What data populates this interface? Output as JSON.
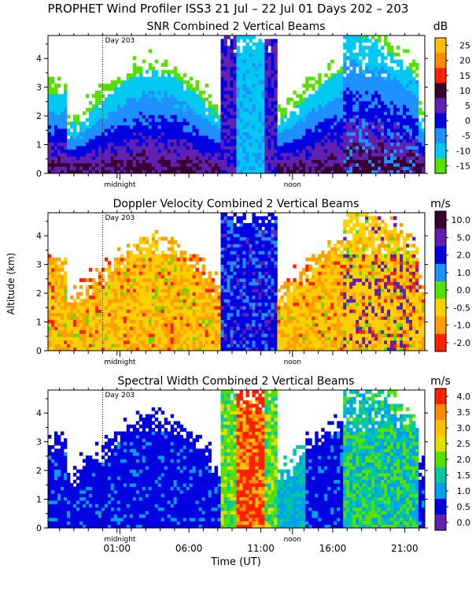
{
  "header": {
    "title": "PROPHET Wind Profiler ISS3  21 Jul – 22 Jul 01 Days 202 – 203"
  },
  "axes": {
    "xlabel": "Time (UT)",
    "ylabel": "Altitude (km)",
    "xticks": [
      "01:00",
      "06:00",
      "11:00",
      "16:00",
      "21:00"
    ],
    "xtick_hours": [
      1,
      6,
      11,
      16,
      21
    ],
    "yticks": [
      "0",
      "1",
      "2",
      "3",
      "4"
    ],
    "ylim": [
      0,
      4.8
    ],
    "xlim_hours": [
      -3.8,
      22.4
    ],
    "day_marker": {
      "label": "Day 203",
      "hour": 0
    },
    "midnight_label": "midnight",
    "noon_label": "noon"
  },
  "colors": {
    "background": "#ffffff",
    "scale": [
      "#55e000",
      "#00c8f0",
      "#1e90ff",
      "#0000e0",
      "#6020b0",
      "#500050",
      "#ff2000",
      "#ff8c00",
      "#ffc000"
    ]
  },
  "chart_data": [
    {
      "type": "heatmap",
      "title": "SNR Combined 2 Vertical Beams",
      "unit": "dB",
      "colorbar_labels": [
        "25",
        "20",
        "15",
        "10",
        "5",
        "0",
        "-5",
        "-10",
        "-15"
      ],
      "colorbar_colors": [
        "#ffc000",
        "#ff8c00",
        "#ff2000",
        "#3a0030",
        "#6020b0",
        "#0000e0",
        "#1e90ff",
        "#00c8f0",
        "#55e000"
      ],
      "xlim_hours": [
        -3.8,
        22.4
      ],
      "ylim_km": [
        0,
        4.8
      ]
    },
    {
      "type": "heatmap",
      "title": "Doppler Velocity Combined 2 Vertical Beams",
      "unit": "m/s",
      "colorbar_labels": [
        "10.0",
        "5.0",
        "2.0",
        "1.0",
        "0.0",
        "-0.5",
        "-1.0",
        "-2.0"
      ],
      "colorbar_colors": [
        "#3a0030",
        "#6020b0",
        "#0000e0",
        "#1e90ff",
        "#55e000",
        "#ffd000",
        "#ffa000",
        "#ff2000"
      ],
      "xlim_hours": [
        -3.8,
        22.4
      ],
      "ylim_km": [
        0,
        4.8
      ]
    },
    {
      "type": "heatmap",
      "title": "Spectral Width Combined 2 Vertical Beams",
      "unit": "m/s",
      "colorbar_labels": [
        "4.0",
        "3.5",
        "3.0",
        "2.5",
        "2.0",
        "1.5",
        "1.0",
        "0.5",
        "0.0"
      ],
      "colorbar_colors": [
        "#ff2000",
        "#ff8c00",
        "#ffc000",
        "#e0e000",
        "#55e000",
        "#00c8a0",
        "#00a0f0",
        "#0000e0",
        "#6020b0"
      ],
      "xlim_hours": [
        -3.8,
        22.4
      ],
      "ylim_km": [
        0,
        4.8
      ]
    }
  ]
}
